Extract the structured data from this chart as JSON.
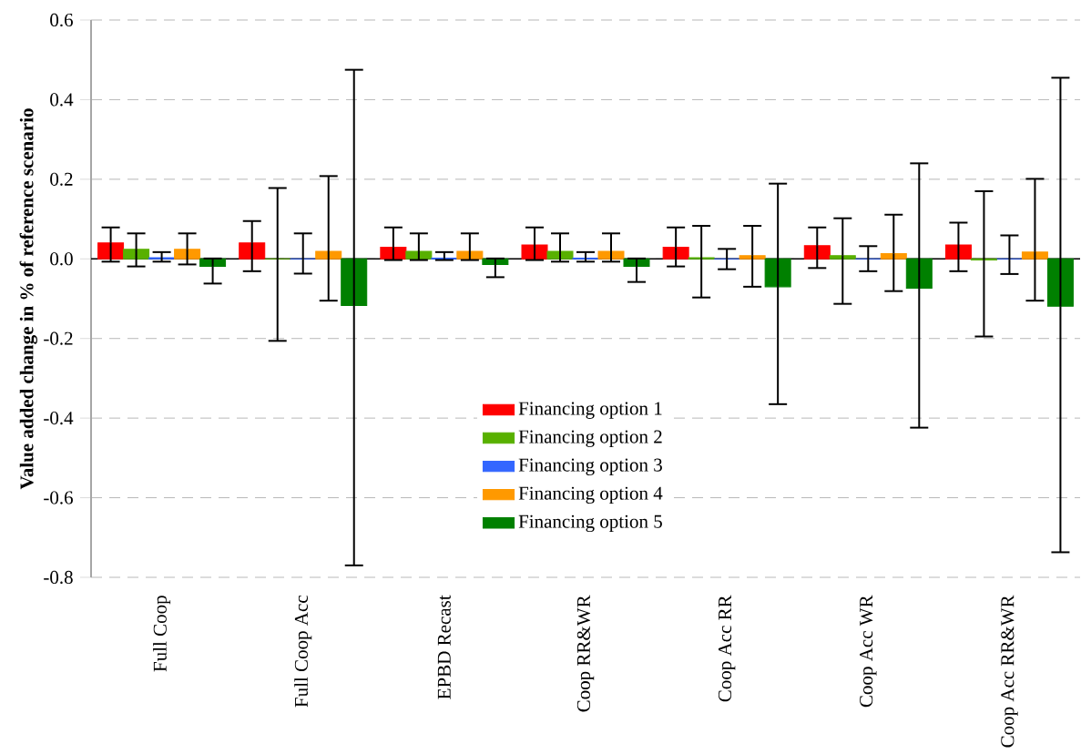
{
  "chart_data": {
    "type": "bar",
    "ylabel": "Value added change in % of reference scenario",
    "categories": [
      "Full Coop",
      "Full Coop Acc",
      "EPBD Recast",
      "Coop RR&WR",
      "Coop Acc RR",
      "Coop Acc WR",
      "Coop Acc RR&WR"
    ],
    "series": [
      {
        "name": "Financing option 1",
        "color": "#ff0000",
        "values": [
          0.04,
          0.04,
          0.029,
          0.035,
          0.029,
          0.033,
          0.035
        ],
        "errors": [
          [
            -0.007,
            0.079
          ],
          [
            -0.031,
            0.095
          ],
          [
            -0.003,
            0.079
          ],
          [
            -0.003,
            0.079
          ],
          [
            -0.019,
            0.079
          ],
          [
            -0.023,
            0.079
          ],
          [
            -0.031,
            0.091
          ]
        ]
      },
      {
        "name": "Financing option 2",
        "color": "#58b000",
        "values": [
          0.024,
          0.0,
          0.019,
          0.019,
          0.003,
          0.008,
          -0.003
        ],
        "errors": [
          [
            -0.019,
            0.064
          ],
          [
            -0.206,
            0.178
          ],
          [
            -0.003,
            0.064
          ],
          [
            -0.007,
            0.064
          ],
          [
            -0.097,
            0.083
          ],
          [
            -0.113,
            0.102
          ],
          [
            -0.195,
            0.17
          ]
        ]
      },
      {
        "name": "Financing option 3",
        "color": "#3366ff",
        "values": [
          0.003,
          0.0,
          0.002,
          0.002,
          0.0,
          0.0,
          0.0
        ],
        "errors": [
          [
            -0.007,
            0.017
          ],
          [
            -0.037,
            0.064
          ],
          [
            -0.003,
            0.017
          ],
          [
            -0.007,
            0.017
          ],
          [
            -0.026,
            0.025
          ],
          [
            -0.031,
            0.032
          ],
          [
            -0.038,
            0.059
          ]
        ]
      },
      {
        "name": "Financing option 4",
        "color": "#ff9900",
        "values": [
          0.024,
          0.019,
          0.019,
          0.019,
          0.008,
          0.013,
          0.017
        ],
        "errors": [
          [
            -0.014,
            0.064
          ],
          [
            -0.105,
            0.208
          ],
          [
            -0.003,
            0.064
          ],
          [
            -0.007,
            0.064
          ],
          [
            -0.07,
            0.083
          ],
          [
            -0.081,
            0.111
          ],
          [
            -0.105,
            0.201
          ]
        ]
      },
      {
        "name": "Financing option 5",
        "color": "#008000",
        "values": [
          -0.019,
          -0.117,
          -0.014,
          -0.019,
          -0.07,
          -0.074,
          -0.119
        ],
        "errors": [
          [
            -0.062,
            0.001
          ],
          [
            -0.77,
            0.475
          ],
          [
            -0.046,
            0.001
          ],
          [
            -0.058,
            0.001
          ],
          [
            -0.365,
            0.189
          ],
          [
            -0.424,
            0.24
          ],
          [
            -0.737,
            0.455
          ]
        ]
      }
    ],
    "ylim": [
      -0.8,
      0.6
    ],
    "yticks": [
      -0.8,
      -0.6,
      -0.4,
      -0.2,
      {
        "value": 0,
        "label": "0.0"
      },
      0.2,
      0.4,
      0.6
    ],
    "grid": "y",
    "legend": "bottom"
  }
}
